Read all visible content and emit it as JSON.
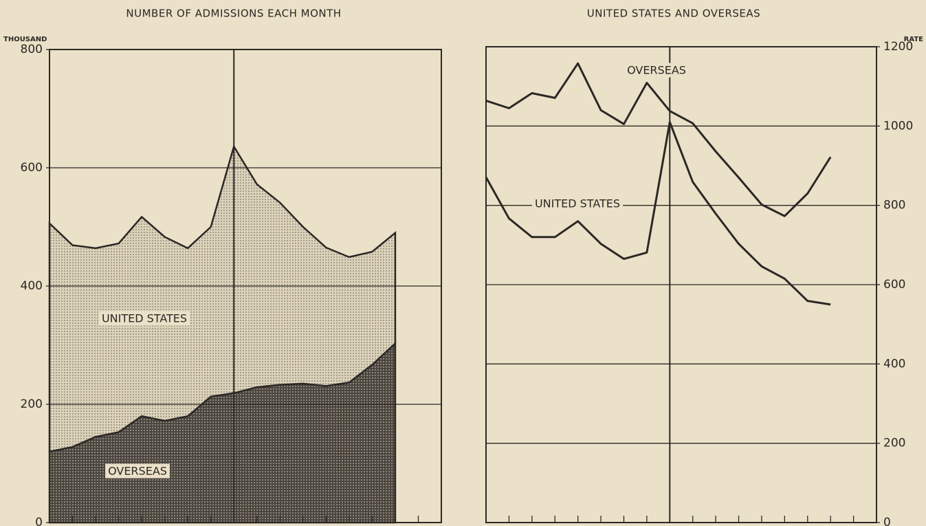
{
  "chart_data": [
    {
      "type": "stacked_area",
      "title": "NUMBER OF ADMISSIONS EACH MONTH",
      "ylabel": "THOUSAND",
      "x": [
        0,
        1,
        2,
        3,
        4,
        5,
        6,
        7,
        8,
        9,
        10,
        11,
        12,
        13,
        14,
        15
      ],
      "xlim": [
        0,
        17
      ],
      "xticks": [
        0,
        1,
        2,
        3,
        4,
        5,
        6,
        7,
        8,
        9,
        10,
        11,
        12,
        13,
        14,
        15,
        16,
        17
      ],
      "vlines": [
        8
      ],
      "ylim": [
        0,
        800
      ],
      "yticks": [
        0,
        200,
        400,
        600,
        800
      ],
      "grid": true,
      "series": [
        {
          "name": "OVERSEAS",
          "color": "#3a3530",
          "values": [
            120,
            128,
            145,
            153,
            180,
            172,
            180,
            213,
            219,
            229,
            233,
            235,
            231,
            237,
            267,
            303
          ]
        },
        {
          "name": "UNITED STATES",
          "color": "#c9bfa8",
          "values": [
            386,
            341,
            319,
            319,
            337,
            311,
            284,
            287,
            417,
            343,
            308,
            265,
            234,
            212,
            191,
            187
          ]
        }
      ]
    },
    {
      "type": "line",
      "title": "UNITED STATES AND OVERSEAS",
      "ylabel": "RATE",
      "x": [
        0,
        1,
        2,
        3,
        4,
        5,
        6,
        7,
        8,
        9,
        10,
        11,
        12,
        13,
        14,
        15
      ],
      "xlim": [
        0,
        17
      ],
      "xticks": [
        0,
        1,
        2,
        3,
        4,
        5,
        6,
        7,
        8,
        9,
        10,
        11,
        12,
        13,
        14,
        15,
        16,
        17
      ],
      "vlines": [
        8
      ],
      "ylim": [
        0,
        1200
      ],
      "yticks": [
        0,
        200,
        400,
        600,
        800,
        1000,
        1200
      ],
      "grid": true,
      "series": [
        {
          "name": "OVERSEAS",
          "color": "#2b2825",
          "values": [
            1064,
            1045,
            1083,
            1071,
            1158,
            1040,
            1005,
            1109,
            1038,
            1007,
            936,
            870,
            802,
            773,
            830,
            922
          ]
        },
        {
          "name": "UNITED STATES",
          "color": "#2b2825",
          "values": [
            871,
            767,
            720,
            720,
            760,
            703,
            665,
            681,
            1010,
            859,
            779,
            703,
            646,
            615,
            559,
            550
          ]
        }
      ]
    }
  ]
}
